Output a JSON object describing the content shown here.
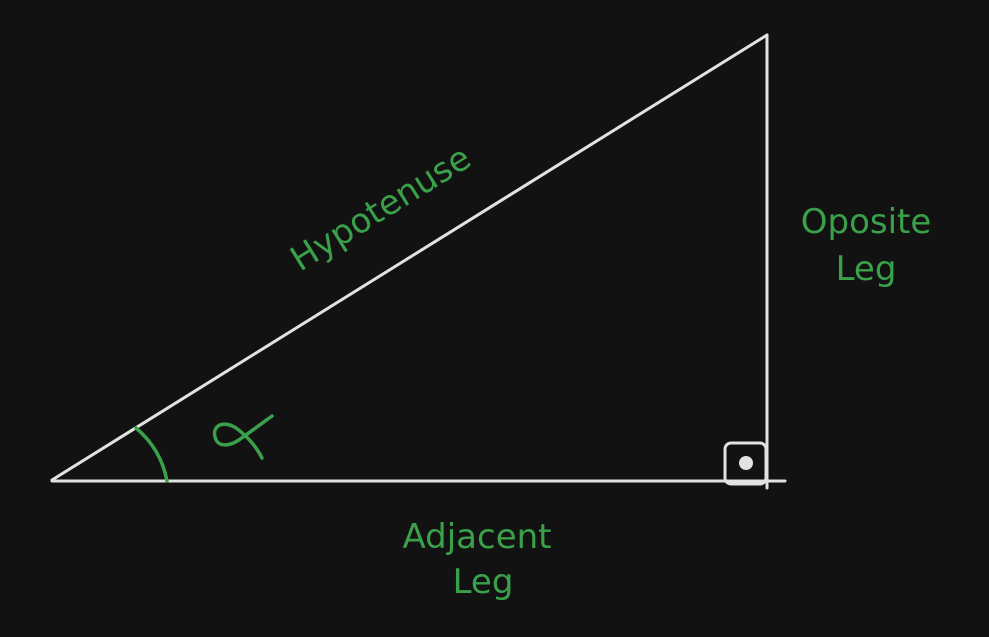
{
  "diagram": {
    "labels": {
      "hypotenuse": "Hypotenuse",
      "opposite_line1": "Oposite",
      "opposite_line2": "Leg",
      "adjacent_line1": "Adjacent",
      "adjacent_line2": "Leg"
    },
    "symbols": {
      "angle_symbol": "alpha-symbol",
      "right_angle_marker": "right-angle-marker"
    },
    "colors": {
      "background": "#121212",
      "lines": "#e2e2e2",
      "labels": "#3aa14a"
    }
  }
}
